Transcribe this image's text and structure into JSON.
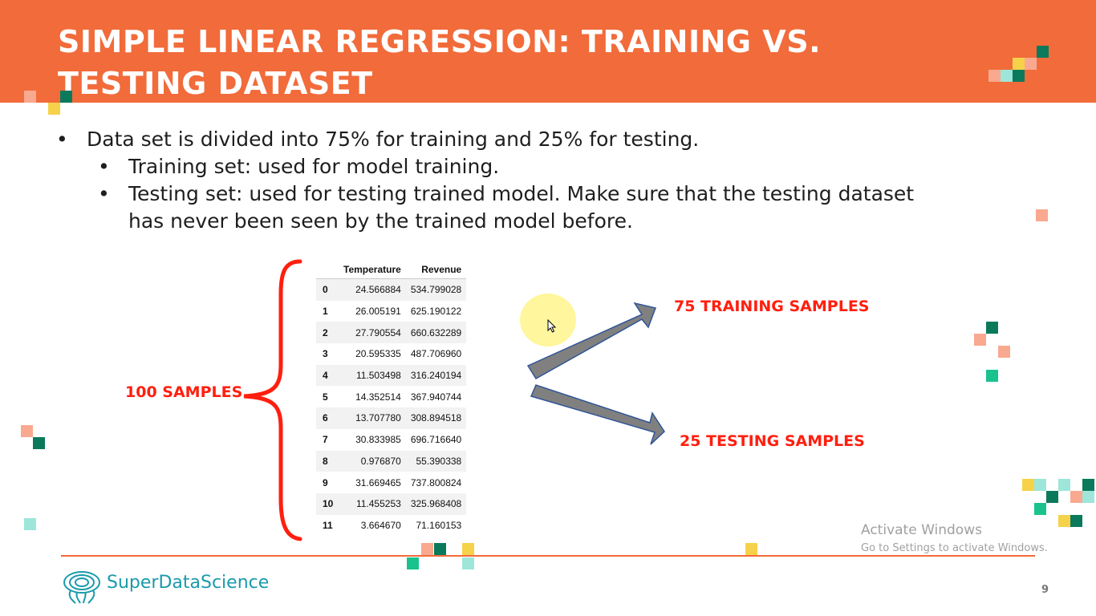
{
  "slide": {
    "title": "SIMPLE LINEAR REGRESSION: TRAINING VS. TESTING DATASET",
    "bullets": {
      "main": "Data set is divided into 75% for training and 25% for testing.",
      "sub1": "Training set: used for model training.",
      "sub2": "Testing set: used for testing trained model. Make sure that the testing dataset has never been seen by the trained model before."
    },
    "bullet_symbol": "•",
    "samples_label": "100 SAMPLES",
    "training_label": "75 TRAINING SAMPLES",
    "testing_label": "25 TESTING SAMPLES",
    "page_number": "9"
  },
  "table": {
    "columns": [
      "",
      "Temperature",
      "Revenue"
    ],
    "rows": [
      [
        "0",
        "24.566884",
        "534.799028"
      ],
      [
        "1",
        "26.005191",
        "625.190122"
      ],
      [
        "2",
        "27.790554",
        "660.632289"
      ],
      [
        "3",
        "20.595335",
        "487.706960"
      ],
      [
        "4",
        "11.503498",
        "316.240194"
      ],
      [
        "5",
        "14.352514",
        "367.940744"
      ],
      [
        "6",
        "13.707780",
        "308.894518"
      ],
      [
        "7",
        "30.833985",
        "696.716640"
      ],
      [
        "8",
        "0.976870",
        "55.390338"
      ],
      [
        "9",
        "31.669465",
        "737.800824"
      ],
      [
        "10",
        "11.455253",
        "325.968408"
      ],
      [
        "11",
        "3.664670",
        "71.160153"
      ]
    ]
  },
  "footer": {
    "logo_text": "SuperDataScience"
  },
  "watermark": {
    "line1": "Activate Windows",
    "line2": "Go to Settings to activate Windows."
  },
  "colors": {
    "header": "#f26b3a",
    "accent_red": "#ff1f0f",
    "brand_teal": "#1a9aab",
    "arrow_fill": "#808080",
    "arrow_stroke": "#2f5597"
  }
}
